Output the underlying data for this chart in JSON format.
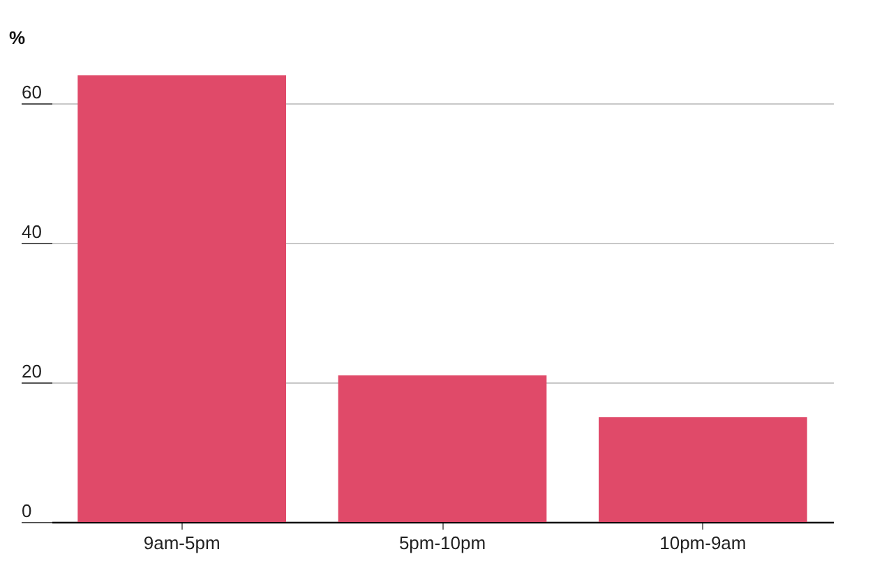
{
  "chart_data": {
    "type": "bar",
    "ylabel": "%",
    "categories": [
      "9am-5pm",
      "5pm-10pm",
      "10pm-9am"
    ],
    "values": [
      64,
      21,
      15
    ],
    "color": "#e04a69",
    "ylim": [
      0,
      64
    ],
    "yticks": [
      0,
      20,
      40,
      60
    ],
    "grid": "y"
  }
}
